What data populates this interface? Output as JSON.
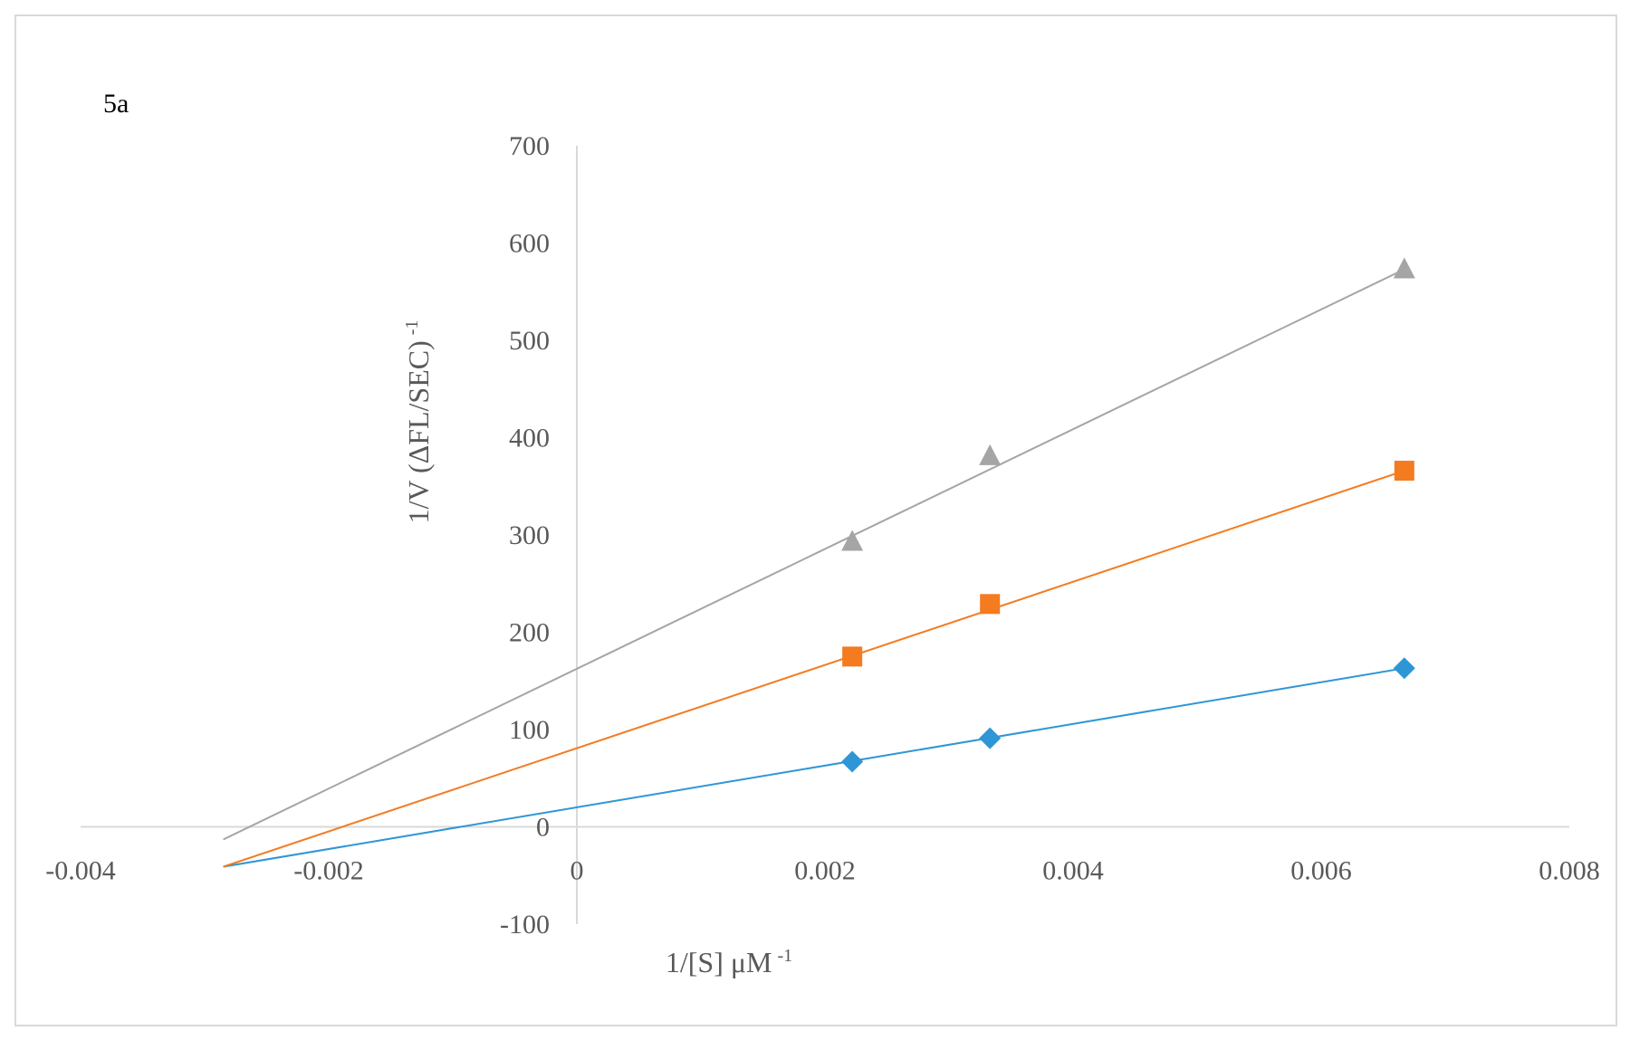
{
  "chart_data": {
    "type": "scatter",
    "panel_label": "5a",
    "xlabel": "1/[S] μM",
    "xlabel_sup": "-1",
    "ylabel": "1/V (ΔFL/SEC)",
    "ylabel_sup": "-1",
    "xlim": [
      -0.004,
      0.008
    ],
    "ylim": [
      -100,
      700
    ],
    "x_ticks": [
      -0.004,
      -0.002,
      0,
      0.002,
      0.004,
      0.006,
      0.008
    ],
    "x_tick_labels": [
      "-0.004",
      "-0.002",
      "0",
      "0.002",
      "0.004",
      "0.006",
      "0.008"
    ],
    "y_ticks": [
      -100,
      0,
      100,
      200,
      300,
      400,
      500,
      600,
      700
    ],
    "y_tick_labels": [
      "-100",
      "0",
      "100",
      "200",
      "300",
      "400",
      "500",
      "600",
      "700"
    ],
    "grid": false,
    "series": [
      {
        "marker": "diamond",
        "color": "#2f96d6",
        "points": [
          {
            "x": 0.00222,
            "y": 67
          },
          {
            "x": 0.00333,
            "y": 91
          },
          {
            "x": 0.00667,
            "y": 163
          }
        ],
        "trendline": {
          "x": [
            -0.00285,
            0.00667
          ],
          "y": [
            -41,
            163
          ]
        }
      },
      {
        "marker": "square",
        "color": "#f47b20",
        "points": [
          {
            "x": 0.00222,
            "y": 175
          },
          {
            "x": 0.00333,
            "y": 229
          },
          {
            "x": 0.00667,
            "y": 366
          }
        ],
        "trendline": {
          "x": [
            -0.00285,
            0.00667
          ],
          "y": [
            -41,
            366
          ]
        }
      },
      {
        "marker": "triangle",
        "color": "#a5a5a5",
        "points": [
          {
            "x": 0.00222,
            "y": 293
          },
          {
            "x": 0.00333,
            "y": 381
          },
          {
            "x": 0.00667,
            "y": 573
          }
        ],
        "trendline": {
          "x": [
            -0.00285,
            0.00667
          ],
          "y": [
            -13,
            573
          ]
        }
      }
    ]
  }
}
